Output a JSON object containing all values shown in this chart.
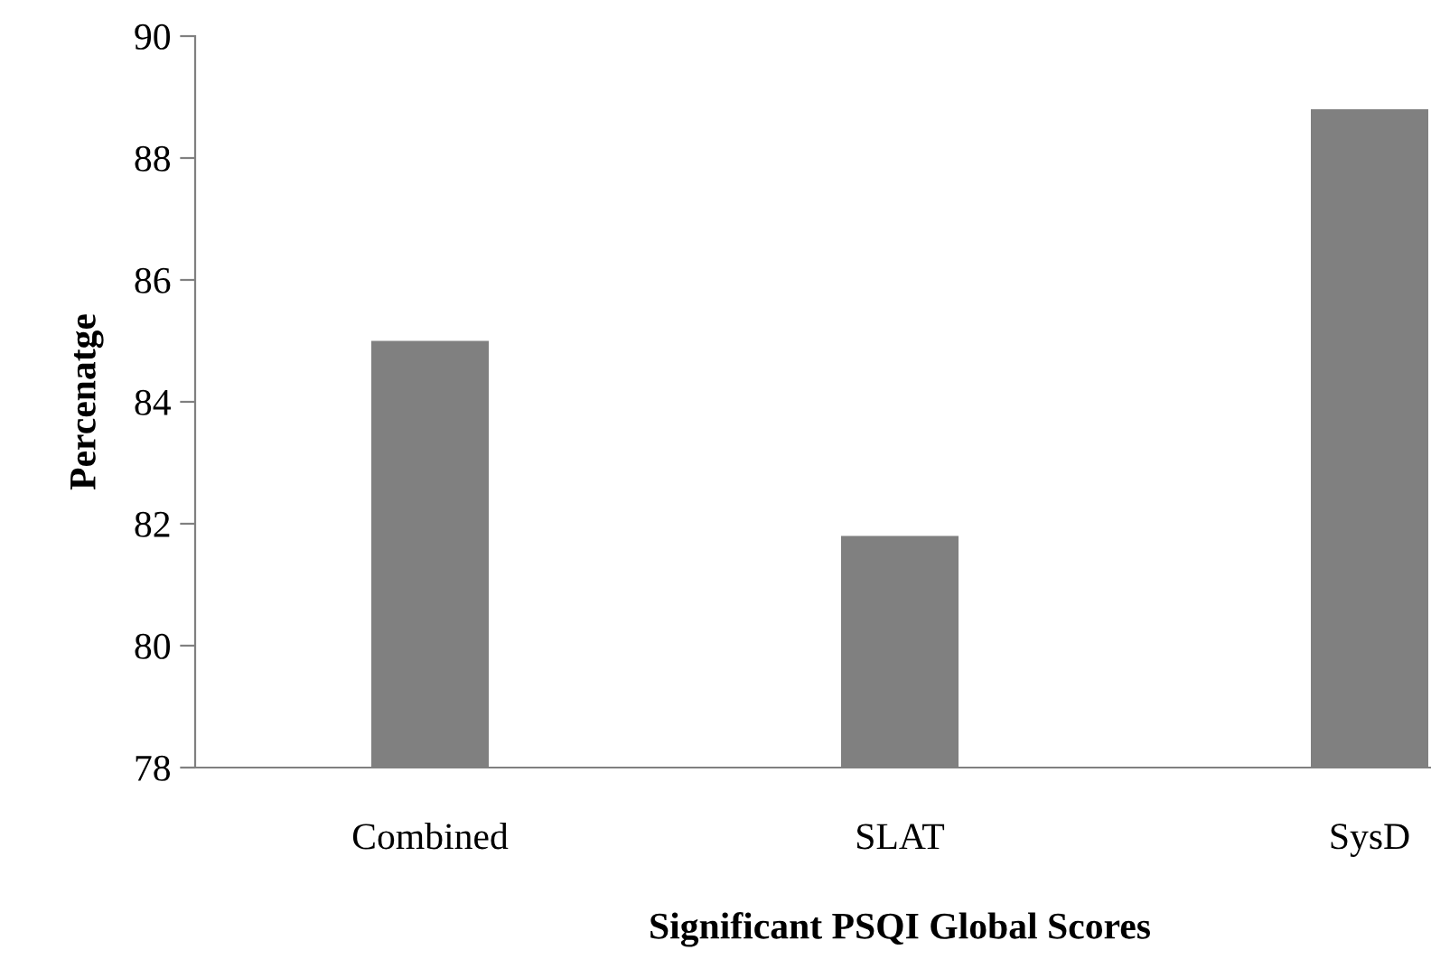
{
  "chart_data": {
    "type": "bar",
    "xlabel": "Significant PSQI Global Scores",
    "ylabel": "Percenatge",
    "categories": [
      "Combined",
      "SLAT",
      "SysD"
    ],
    "values": [
      85.0,
      81.8,
      88.8
    ],
    "color": "#808080",
    "ylim": [
      78,
      90
    ],
    "yticks": [
      78,
      80,
      82,
      84,
      86,
      88,
      90
    ],
    "grid": false
  }
}
